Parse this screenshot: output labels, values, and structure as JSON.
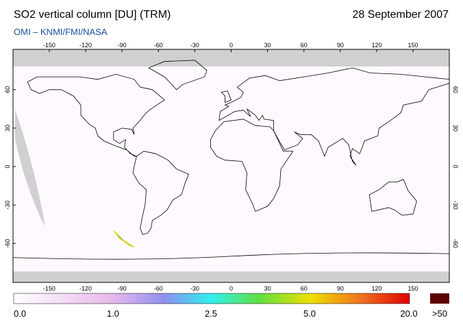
{
  "header": {
    "title": "SO2 vertical column [DU] (TRM)",
    "date": "28 September 2007",
    "source": "OMI  –  KNMI/FMI/NASA"
  },
  "map": {
    "lon_ticks": [
      -150,
      -120,
      -90,
      -60,
      -30,
      0,
      30,
      60,
      90,
      120,
      150
    ],
    "lat_ticks": [
      60,
      30,
      0,
      -30,
      -60
    ]
  },
  "colorbar": {
    "labels": [
      "0.0",
      "1.0",
      "2.5",
      "5.0",
      "20.0",
      ">50"
    ]
  }
}
